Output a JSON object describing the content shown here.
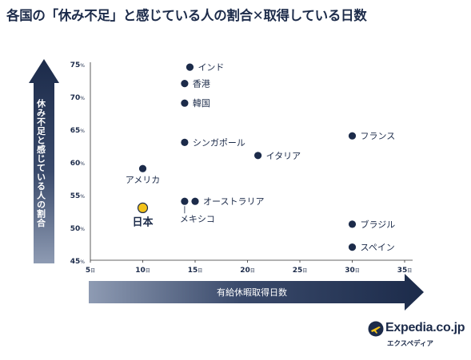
{
  "title": "各国の「休み不足」と感じている人の割合✕取得している日数",
  "brand": {
    "name": "Expedia.co.jp",
    "sub": "エクスペディア"
  },
  "chart_data": {
    "type": "scatter",
    "title": "各国の「休み不足」と感じている人の割合✕取得している日数",
    "xlabel": "有給休暇取得日数",
    "ylabel": "休み不足と感じている人の割合",
    "xlim": [
      5,
      35
    ],
    "ylim": [
      45,
      75
    ],
    "x_ticks": [
      5,
      10,
      15,
      20,
      25,
      30,
      35
    ],
    "x_tick_suffix": "日",
    "y_ticks": [
      45,
      50,
      55,
      60,
      65,
      70,
      75
    ],
    "y_tick_suffix": "%",
    "grid": false,
    "colors": {
      "point": "#1c2b4a",
      "highlight": "#f2c21b",
      "arrow": "#1c2b4a"
    },
    "points": [
      {
        "label": "インド",
        "x": 14.5,
        "y": 74.5,
        "label_pos": "right"
      },
      {
        "label": "香港",
        "x": 14,
        "y": 72,
        "label_pos": "right"
      },
      {
        "label": "韓国",
        "x": 14,
        "y": 69,
        "label_pos": "right"
      },
      {
        "label": "シンガポール",
        "x": 14,
        "y": 63,
        "label_pos": "right"
      },
      {
        "label": "イタリア",
        "x": 21,
        "y": 61,
        "label_pos": "right"
      },
      {
        "label": "フランス",
        "x": 30,
        "y": 64,
        "label_pos": "right"
      },
      {
        "label": "アメリカ",
        "x": 10,
        "y": 59,
        "label_pos": "below"
      },
      {
        "label": "オーストラリア",
        "x": 15,
        "y": 54,
        "label_pos": "right"
      },
      {
        "label": "メキシコ",
        "x": 14,
        "y": 54,
        "label_pos": "below-leader"
      },
      {
        "label": "日本",
        "x": 10,
        "y": 53,
        "label_pos": "below",
        "highlight": true
      },
      {
        "label": "ブラジル",
        "x": 30,
        "y": 50.5,
        "label_pos": "right"
      },
      {
        "label": "スペイン",
        "x": 30,
        "y": 47,
        "label_pos": "right"
      }
    ]
  }
}
